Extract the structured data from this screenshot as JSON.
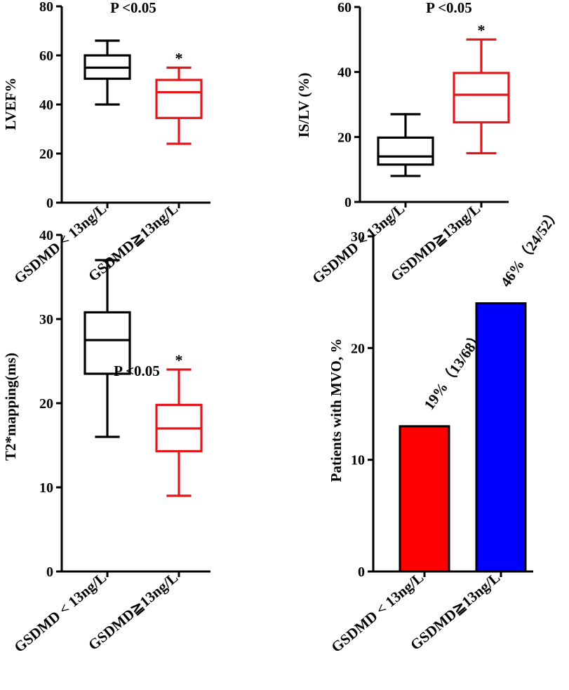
{
  "chart_data": [
    {
      "id": "lvef",
      "type": "box",
      "ylabel": "LVEF%",
      "ylim": [
        0,
        80
      ],
      "yticks": [
        0,
        20,
        40,
        60,
        80
      ],
      "annotation": "P <0.05",
      "categories": [
        "GSDMD < 13ng/L",
        "GSDMD≧13ng/L"
      ],
      "colors": [
        "#000000",
        "#e0181b"
      ],
      "boxes": [
        {
          "min": 40,
          "q1": 50.5,
          "median": 55,
          "q3": 60,
          "max": 66,
          "mark": ""
        },
        {
          "min": 24,
          "q1": 34.5,
          "median": 45,
          "q3": 50,
          "max": 55,
          "mark": "*"
        }
      ]
    },
    {
      "id": "is_lv",
      "type": "box",
      "ylabel": "IS/LV (%)",
      "ylim": [
        0,
        60
      ],
      "yticks": [
        0,
        20,
        40,
        60
      ],
      "annotation": "P <0.05",
      "categories": [
        "GSDMD < 13ng/L",
        "GSDMD≧13ng/L"
      ],
      "colors": [
        "#000000",
        "#e0181b"
      ],
      "boxes": [
        {
          "min": 8,
          "q1": 11.5,
          "median": 14,
          "q3": 19.8,
          "max": 27,
          "mark": ""
        },
        {
          "min": 15,
          "q1": 24.5,
          "median": 33,
          "q3": 39.7,
          "max": 50,
          "mark": "*"
        }
      ]
    },
    {
      "id": "t2",
      "type": "box",
      "ylabel": "T2*mapping(ms)",
      "ylim": [
        0,
        40
      ],
      "yticks": [
        0,
        10,
        20,
        30,
        40
      ],
      "annotation": "P <0.05",
      "categories": [
        "GSDMD < 13ng/L",
        "GSDMD≧13ng/L"
      ],
      "colors": [
        "#000000",
        "#e0181b"
      ],
      "boxes": [
        {
          "min": 16,
          "q1": 23.5,
          "median": 27.5,
          "q3": 30.8,
          "max": 37,
          "mark": ""
        },
        {
          "min": 9,
          "q1": 14.3,
          "median": 17,
          "q3": 19.8,
          "max": 24,
          "mark": "*"
        }
      ]
    },
    {
      "id": "mvo",
      "type": "bar",
      "ylabel": "Patients with MVO, %",
      "ylim": [
        0,
        30
      ],
      "yticks": [
        0,
        10,
        20,
        30
      ],
      "categories": [
        "GSDMD < 13ng/L",
        "GSDMD≧13ng/L"
      ],
      "colors": [
        "#ff0000",
        "#0000ff"
      ],
      "values": [
        13,
        24
      ],
      "bar_labels": [
        "19%（13/68）",
        "46%（24/52）"
      ]
    }
  ]
}
